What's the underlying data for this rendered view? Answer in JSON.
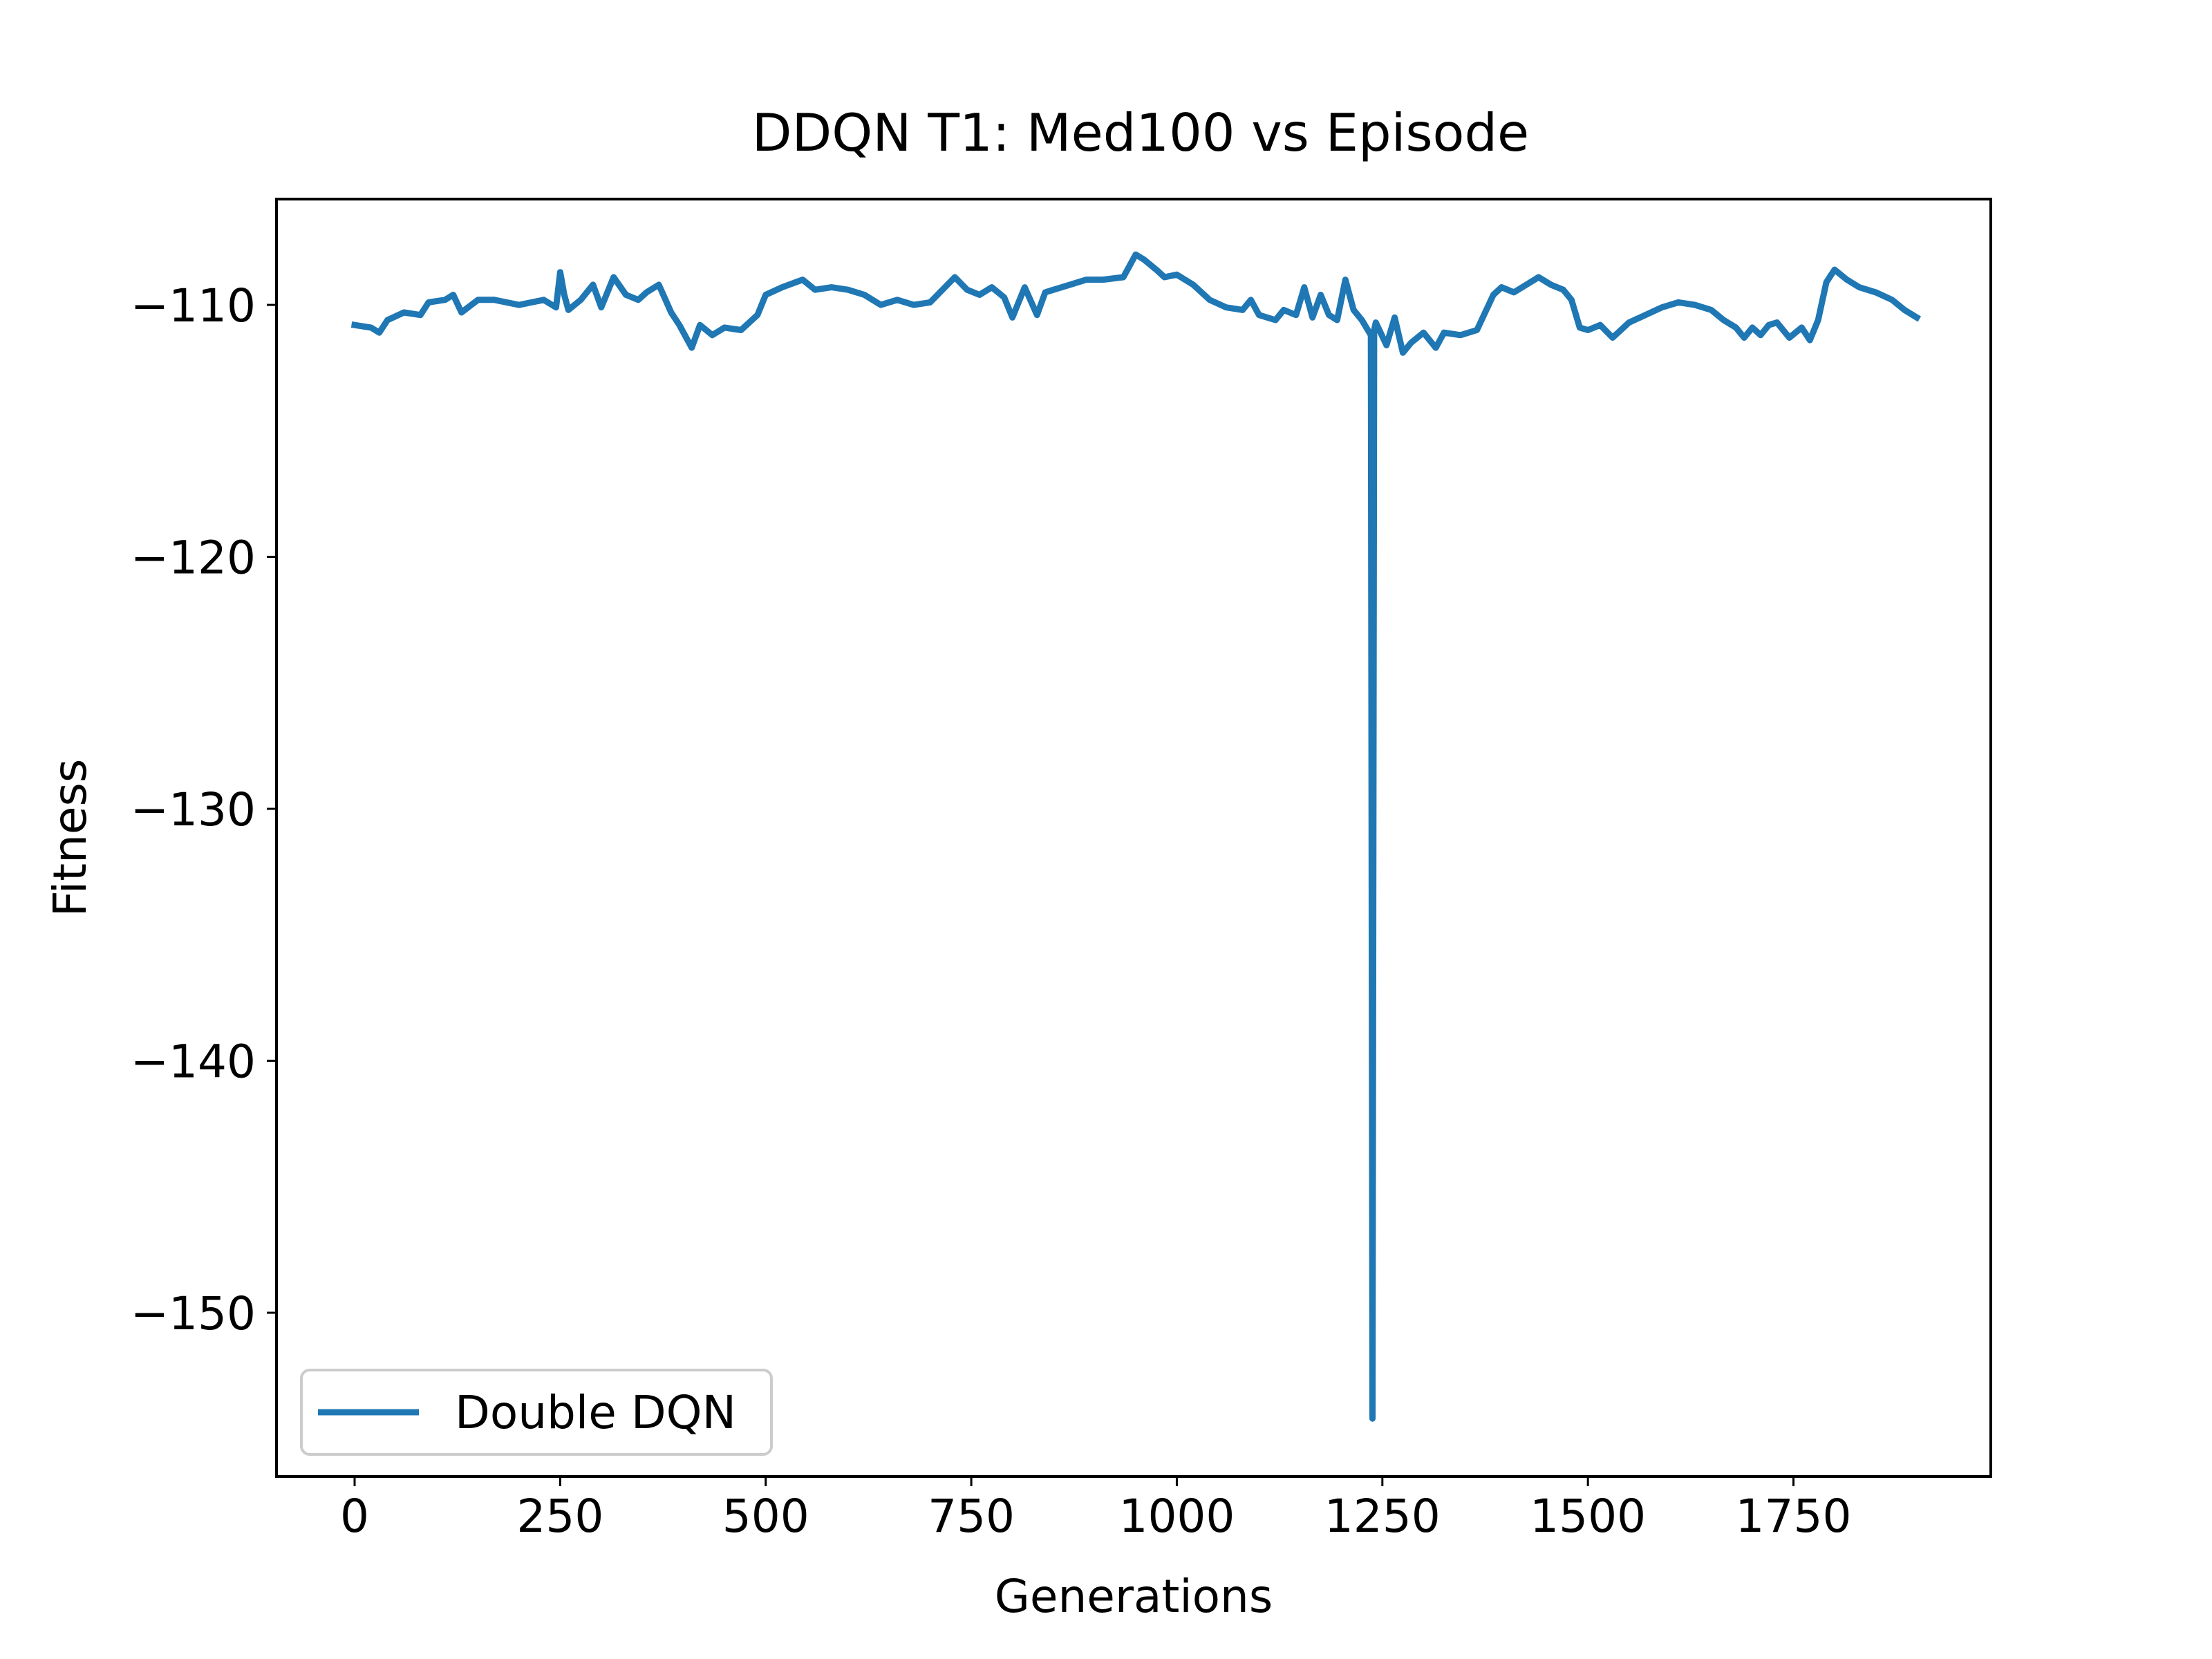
{
  "chart_data": {
    "type": "line",
    "title": "DDQN T1: Med100 vs Episode",
    "xlabel": "Generations",
    "ylabel": "Fitness",
    "xlim": [
      -95,
      1990
    ],
    "ylim": [
      -156.5,
      -105.8
    ],
    "xticks": [
      0,
      250,
      500,
      750,
      1000,
      1250,
      1500,
      1750
    ],
    "xtick_labels": [
      "0",
      "250",
      "500",
      "750",
      "1000",
      "1250",
      "1500",
      "1750"
    ],
    "yticks": [
      -110,
      -120,
      -130,
      -140,
      -150
    ],
    "ytick_labels": [
      "−110",
      "−120",
      "−130",
      "−140",
      "−150"
    ],
    "grid": false,
    "legend_position": "lower-left",
    "series": [
      {
        "name": "Double DQN",
        "color": "#1f77b4",
        "x": [
          0,
          20,
          30,
          40,
          60,
          80,
          90,
          110,
          120,
          130,
          150,
          170,
          200,
          230,
          245,
          250,
          255,
          260,
          275,
          290,
          300,
          315,
          330,
          345,
          355,
          370,
          385,
          395,
          410,
          420,
          435,
          450,
          470,
          490,
          500,
          520,
          545,
          560,
          580,
          600,
          620,
          640,
          660,
          680,
          700,
          730,
          745,
          760,
          775,
          790,
          800,
          815,
          830,
          840,
          850,
          870,
          890,
          910,
          935,
          950,
          960,
          975,
          985,
          1000,
          1020,
          1040,
          1060,
          1080,
          1090,
          1100,
          1120,
          1130,
          1145,
          1155,
          1165,
          1175,
          1185,
          1195,
          1205,
          1215,
          1225,
          1236,
          1238,
          1240,
          1242,
          1255,
          1265,
          1275,
          1285,
          1300,
          1315,
          1325,
          1345,
          1365,
          1385,
          1395,
          1410,
          1425,
          1440,
          1455,
          1470,
          1480,
          1490,
          1500,
          1515,
          1530,
          1550,
          1570,
          1590,
          1610,
          1630,
          1650,
          1665,
          1680,
          1690,
          1700,
          1710,
          1720,
          1730,
          1745,
          1760,
          1770,
          1780,
          1790,
          1800,
          1815,
          1830,
          1850,
          1870,
          1885,
          1900
        ],
        "y": [
          -110.8,
          -110.9,
          -111.1,
          -110.6,
          -110.3,
          -110.4,
          -109.9,
          -109.8,
          -109.6,
          -110.3,
          -109.8,
          -109.8,
          -110.0,
          -109.8,
          -110.1,
          -108.7,
          -109.6,
          -110.2,
          -109.8,
          -109.2,
          -110.1,
          -108.9,
          -109.6,
          -109.8,
          -109.5,
          -109.2,
          -110.3,
          -110.8,
          -111.7,
          -110.8,
          -111.2,
          -110.9,
          -111.0,
          -110.4,
          -109.6,
          -109.3,
          -109.0,
          -109.4,
          -109.3,
          -109.4,
          -109.6,
          -110.0,
          -109.8,
          -110.0,
          -109.9,
          -108.9,
          -109.4,
          -109.6,
          -109.3,
          -109.7,
          -110.5,
          -109.3,
          -110.4,
          -109.5,
          -109.4,
          -109.2,
          -109.0,
          -109.0,
          -108.9,
          -108.0,
          -108.2,
          -108.6,
          -108.9,
          -108.8,
          -109.2,
          -109.8,
          -110.1,
          -110.2,
          -109.8,
          -110.4,
          -110.6,
          -110.2,
          -110.4,
          -109.3,
          -110.5,
          -109.6,
          -110.4,
          -110.6,
          -109.0,
          -110.2,
          -110.6,
          -111.2,
          -154.2,
          -111.0,
          -110.7,
          -111.6,
          -110.5,
          -111.9,
          -111.5,
          -111.1,
          -111.7,
          -111.1,
          -111.2,
          -111.0,
          -109.6,
          -109.3,
          -109.5,
          -109.2,
          -108.9,
          -109.2,
          -109.4,
          -109.8,
          -110.9,
          -111.0,
          -110.8,
          -111.3,
          -110.7,
          -110.4,
          -110.1,
          -109.9,
          -110.0,
          -110.2,
          -110.6,
          -110.9,
          -111.3,
          -110.9,
          -111.2,
          -110.8,
          -110.7,
          -111.3,
          -110.9,
          -111.4,
          -110.6,
          -109.1,
          -108.6,
          -109.0,
          -109.3,
          -109.5,
          -109.8,
          -110.2,
          -110.5
        ]
      }
    ]
  }
}
